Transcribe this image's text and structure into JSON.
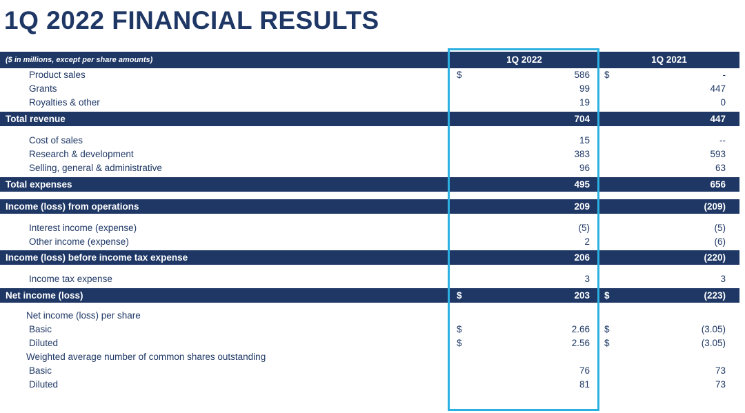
{
  "page_title": "1Q 2022 FINANCIAL RESULTS",
  "colors": {
    "navy": "#1e3765",
    "highlight_cyan": "#2bb0e2",
    "text": "#1e3765",
    "header_text": "#ffffff"
  },
  "highlight": {
    "highlighted_column": "1Q 2022"
  },
  "table": {
    "header": {
      "label": "($ in millions, except per share amounts)",
      "col1": "1Q 2022",
      "col2": "1Q 2021"
    },
    "rows": [
      {
        "type": "data",
        "label": "Product sales",
        "d1": "$",
        "v1": "586",
        "d2": "$",
        "v2": "-"
      },
      {
        "type": "data",
        "label": "Grants",
        "d1": "",
        "v1": "99",
        "d2": "",
        "v2": "447"
      },
      {
        "type": "data",
        "label": "Royalties & other",
        "d1": "",
        "v1": "19",
        "d2": "",
        "v2": "0"
      },
      {
        "type": "gap",
        "size": 3
      },
      {
        "type": "total",
        "label": "Total revenue",
        "d1": "",
        "v1": "704",
        "d2": "",
        "v2": "447"
      },
      {
        "type": "gap",
        "size": 11
      },
      {
        "type": "data",
        "label": "Cost of sales",
        "d1": "",
        "v1": "15",
        "d2": "",
        "v2": "--"
      },
      {
        "type": "data",
        "label": "Research & development",
        "d1": "",
        "v1": "383",
        "d2": "",
        "v2": "593"
      },
      {
        "type": "data",
        "label": "Selling, general & administrative",
        "d1": "",
        "v1": "96",
        "d2": "",
        "v2": "63"
      },
      {
        "type": "gap",
        "size": 3
      },
      {
        "type": "total",
        "label": "Total expenses",
        "d1": "",
        "v1": "495",
        "d2": "",
        "v2": "656"
      },
      {
        "type": "gap",
        "size": 11
      },
      {
        "type": "total",
        "label": "Income (loss) from operations",
        "d1": "",
        "v1": "209",
        "d2": "",
        "v2": "(209)"
      },
      {
        "type": "gap",
        "size": 11
      },
      {
        "type": "data",
        "label": "Interest income (expense)",
        "d1": "",
        "v1": "(5)",
        "d2": "",
        "v2": "(5)"
      },
      {
        "type": "data",
        "label": "Other income (expense)",
        "d1": "",
        "v1": "2",
        "d2": "",
        "v2": "(6)"
      },
      {
        "type": "gap",
        "size": 2
      },
      {
        "type": "total",
        "label": "Income (loss) before income tax expense",
        "d1": "",
        "v1": "206",
        "d2": "",
        "v2": "(220)"
      },
      {
        "type": "gap",
        "size": 11
      },
      {
        "type": "data",
        "label": "Income tax expense",
        "d1": "",
        "v1": "3",
        "d2": "",
        "v2": "3"
      },
      {
        "type": "gap",
        "size": 3
      },
      {
        "type": "total",
        "label": "Net income (loss)",
        "d1": "$",
        "v1": "203",
        "d2": "$",
        "v2": "(223)"
      },
      {
        "type": "gap",
        "size": 9
      },
      {
        "type": "section",
        "label": "Net income (loss) per share"
      },
      {
        "type": "data",
        "label": "Basic",
        "d1": "$",
        "v1": "2.66",
        "d2": "$",
        "v2": "(3.05)"
      },
      {
        "type": "data",
        "label": "Diluted",
        "d1": "$",
        "v1": "2.56",
        "d2": "$",
        "v2": "(3.05)"
      },
      {
        "type": "section",
        "label": "Weighted average number of common shares outstanding"
      },
      {
        "type": "data",
        "label": "Basic",
        "d1": "",
        "v1": "76",
        "d2": "",
        "v2": "73"
      },
      {
        "type": "data",
        "label": "Diluted",
        "d1": "",
        "v1": "81",
        "d2": "",
        "v2": "73"
      }
    ]
  }
}
